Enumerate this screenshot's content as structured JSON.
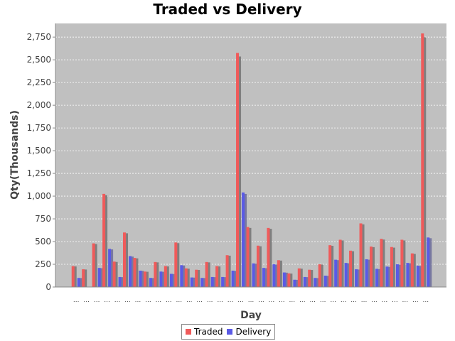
{
  "chart_data": {
    "type": "bar",
    "title": "Traded vs Delivery",
    "xlabel": "Day",
    "ylabel": "Qty(Thousands)",
    "ylim": [
      0,
      2900
    ],
    "yticks": [
      0,
      250,
      500,
      750,
      1000,
      1250,
      1500,
      1750,
      2000,
      2250,
      2500,
      2750
    ],
    "ytick_labels": [
      "0",
      "250",
      "500",
      "750",
      "1,000",
      "1,250",
      "1,500",
      "1,750",
      "2,000",
      "2,250",
      "2,500",
      "2,750"
    ],
    "grid": true,
    "legend_position": "bottom",
    "category_label": "...",
    "category_count": 35,
    "series": [
      {
        "name": "Traded",
        "color": "#f05a5a",
        "values": [
          230,
          195,
          480,
          1025,
          280,
          600,
          320,
          170,
          275,
          230,
          490,
          205,
          190,
          275,
          230,
          350,
          2575,
          660,
          455,
          650,
          295,
          150,
          205,
          190,
          250,
          460,
          520,
          400,
          700,
          445,
          530,
          440,
          520,
          370,
          2790
        ]
      },
      {
        "name": "Delivery",
        "color": "#5a5ae6",
        "values": [
          100,
          0,
          210,
          420,
          110,
          340,
          180,
          100,
          170,
          145,
          240,
          105,
          100,
          110,
          110,
          180,
          1040,
          260,
          210,
          250,
          160,
          80,
          110,
          100,
          125,
          300,
          265,
          195,
          305,
          200,
          225,
          250,
          265,
          235,
          545
        ]
      }
    ]
  }
}
